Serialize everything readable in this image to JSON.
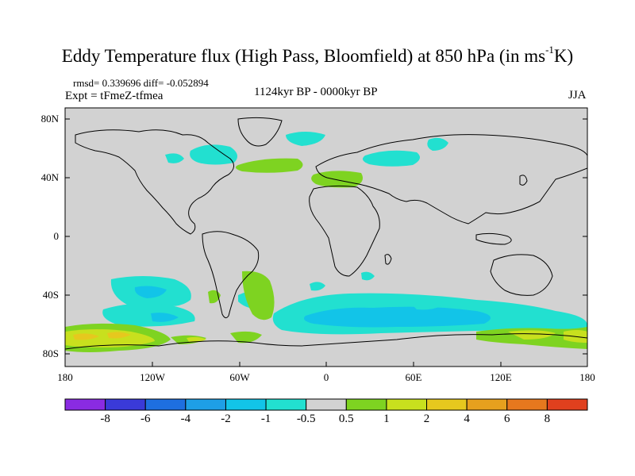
{
  "title": {
    "main": "Eddy Temperature flux (High Pass, Bloomfield) at 850 hPa (in ms",
    "sup": "-1",
    "tail": "K)"
  },
  "header": {
    "rmsd_line": "rmsd= 0.339696 diff= -0.052894",
    "expt_line": "Expt = tFmeZ-tfmea",
    "period": "1124kyr BP - 0000kyr BP",
    "season": "JJA"
  },
  "axes": {
    "lat_labels": [
      "80N",
      "40N",
      "0",
      "40S",
      "80S"
    ],
    "lon_labels": [
      "180",
      "120W",
      "60W",
      "0",
      "60E",
      "120E",
      "180"
    ]
  },
  "colorbar": {
    "labels": [
      "-8",
      "-6",
      "-4",
      "-2",
      "-1",
      "-0.5",
      "0.5",
      "1",
      "2",
      "4",
      "6",
      "8"
    ],
    "colors": [
      "#8a2be2",
      "#3a3ad8",
      "#1e6fe0",
      "#1e9fe6",
      "#12c4e8",
      "#22e0d0",
      "#d2d2d2",
      "#7ed321",
      "#c8e01e",
      "#e6c81e",
      "#e6a01e",
      "#e6781e",
      "#e0401e"
    ]
  },
  "colors": {
    "ocean_bg": "#d2d2d2",
    "neg_light": "#22e0d0",
    "neg_mid": "#12c4e8",
    "pos_light": "#7ed321",
    "pos_mid": "#c8e01e",
    "pos_strong": "#e6c81e"
  }
}
